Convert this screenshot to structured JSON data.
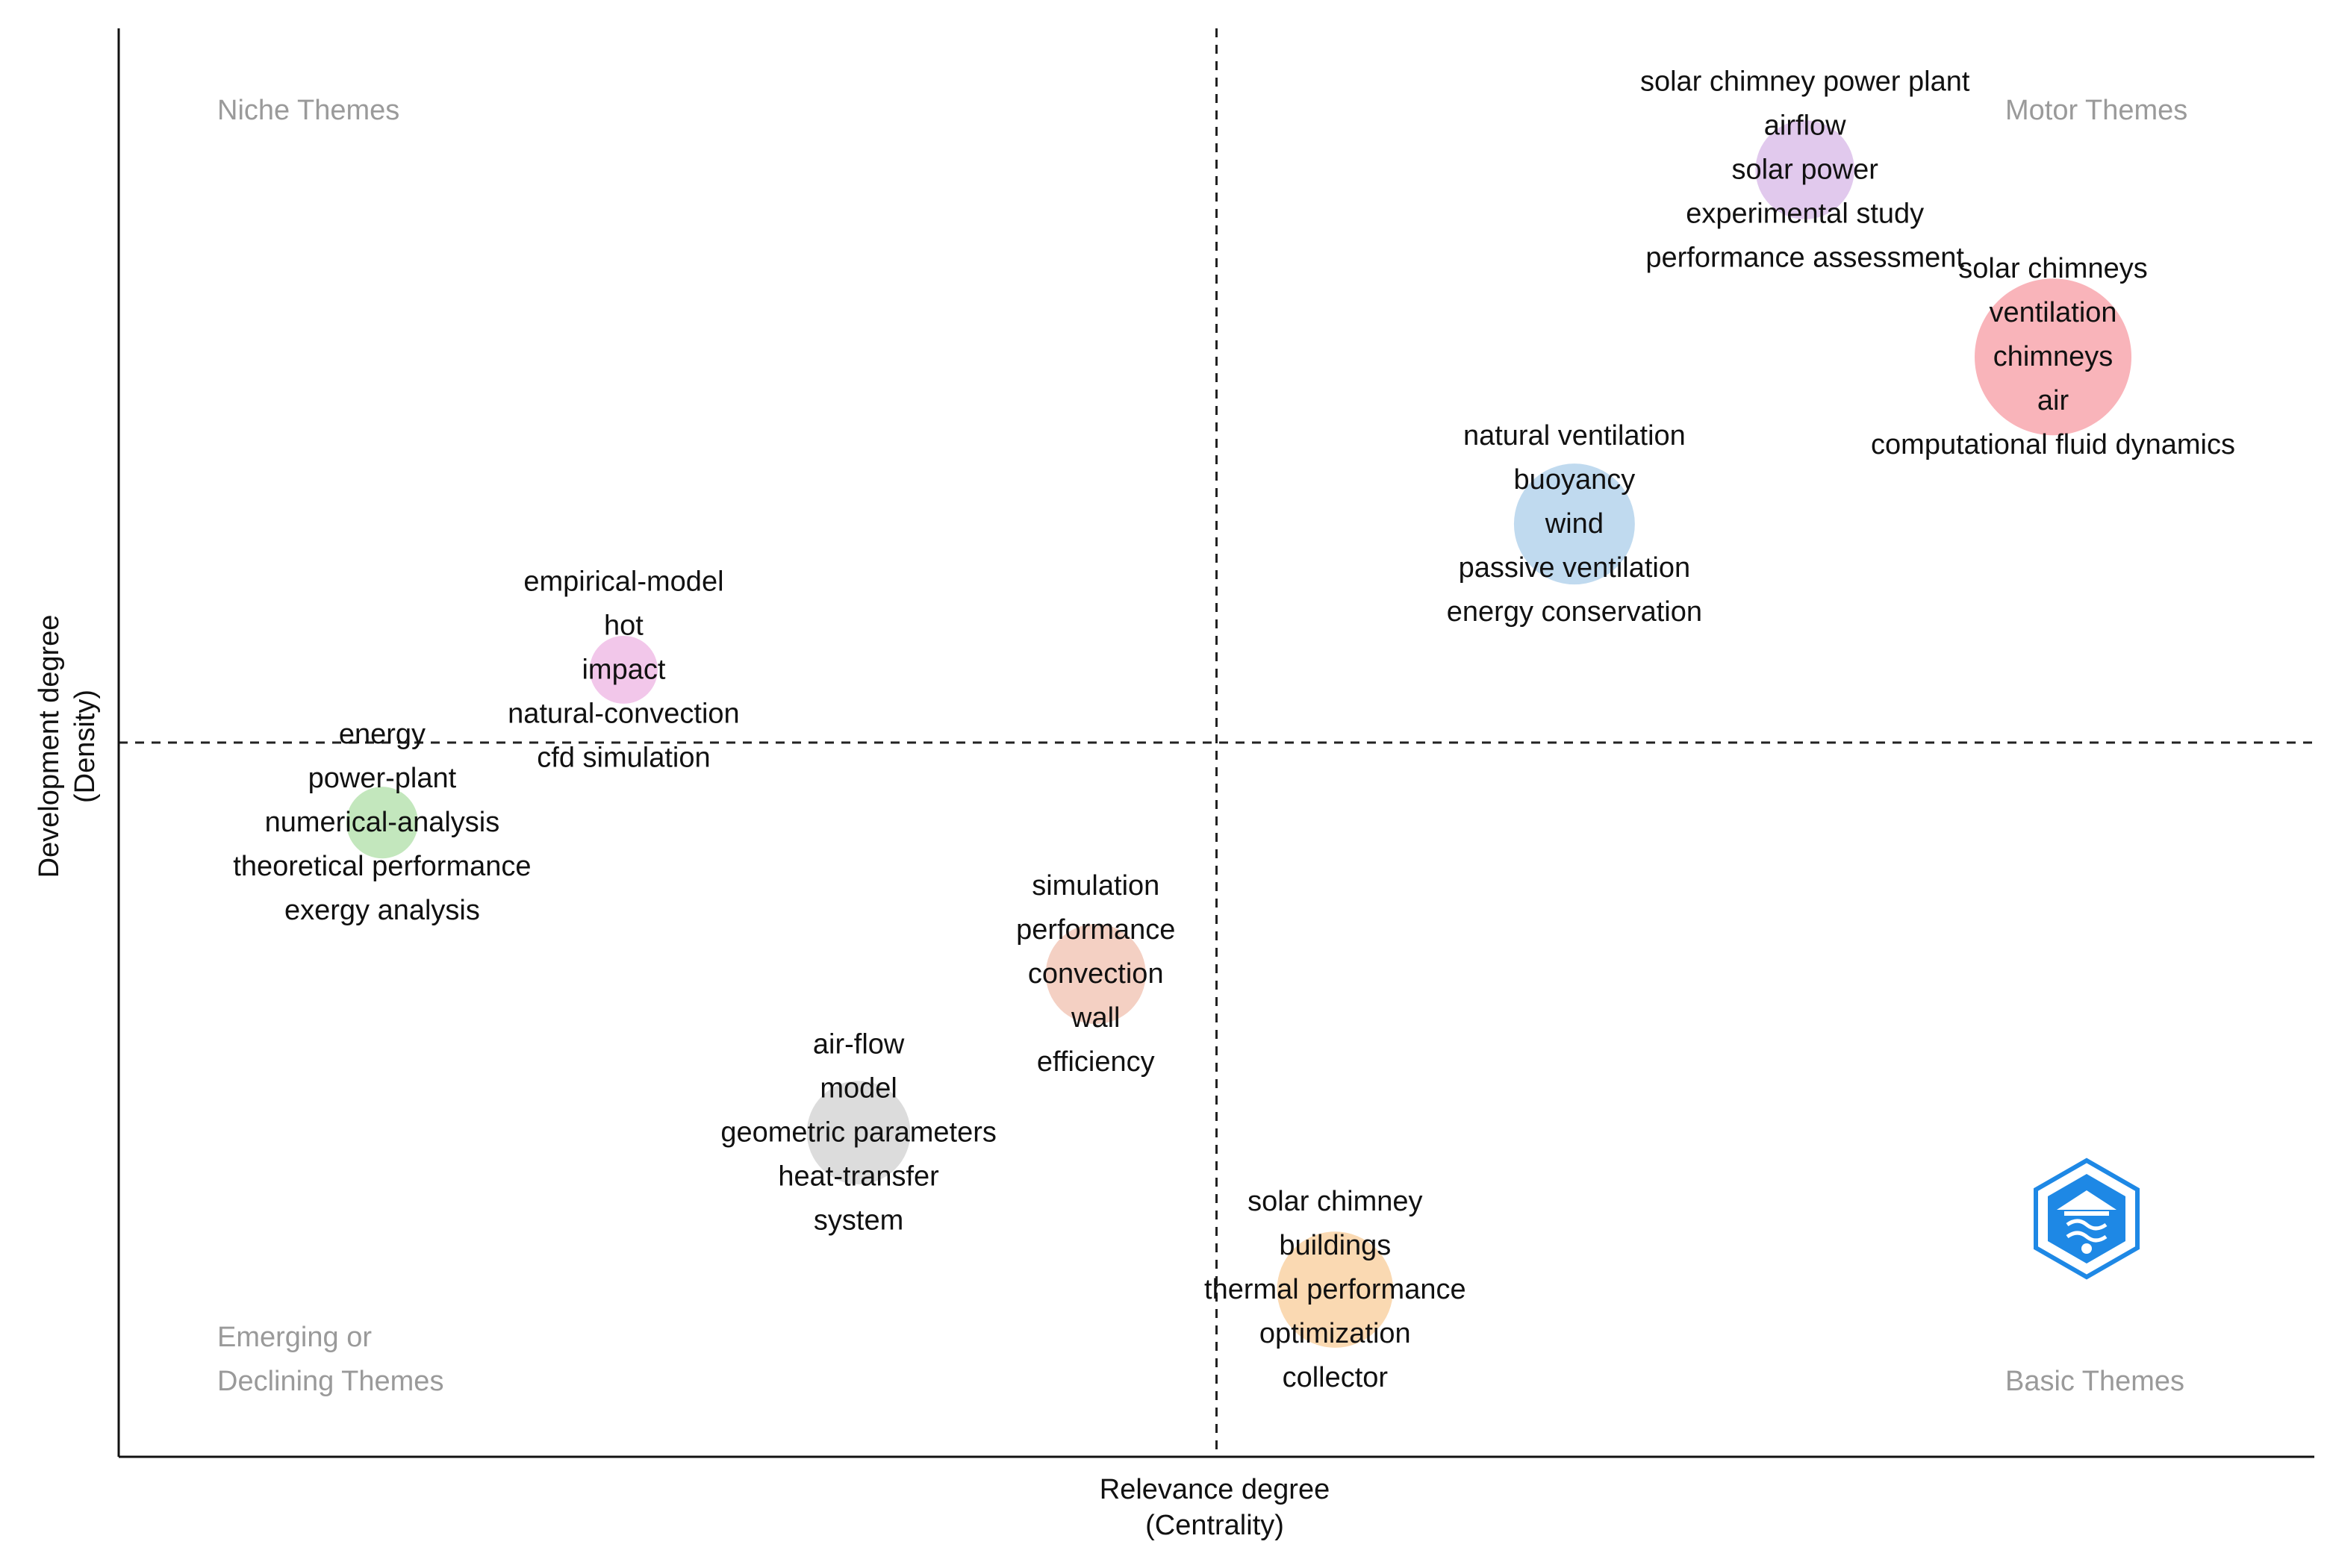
{
  "chart_data": {
    "type": "scatter",
    "title": "",
    "xlabel": "Relevance degree",
    "xlabel_sub": "(Centrality)",
    "ylabel": "Development degree",
    "ylabel_sub": "(Density)",
    "xlim": [
      0,
      100
    ],
    "ylim": [
      0,
      100
    ],
    "x_divider": 50,
    "y_divider": 50,
    "quadrant_labels": [
      {
        "text": "Niche Themes",
        "quadrant": "top-left"
      },
      {
        "text": "Motor Themes",
        "quadrant": "top-right"
      },
      {
        "text": "Emerging or",
        "quadrant": "bottom-left-line1"
      },
      {
        "text": "Declining Themes",
        "quadrant": "bottom-left-line2"
      },
      {
        "text": "Basic Themes",
        "quadrant": "bottom-right"
      }
    ],
    "clusters": [
      {
        "name": "solar chimney power plant",
        "x": 76.8,
        "y": 90.1,
        "size": 0.34,
        "color": "#dcc0ea",
        "keywords": [
          "solar chimney power plant",
          "airflow",
          "solar power",
          "experimental study",
          "performance assessment"
        ]
      },
      {
        "name": "solar chimneys",
        "x": 88.1,
        "y": 77.0,
        "size": 1.0,
        "color": "#f8a7ae",
        "keywords": [
          "solar chimneys",
          "ventilation",
          "chimneys",
          "air",
          "computational fluid dynamics"
        ]
      },
      {
        "name": "natural ventilation",
        "x": 66.3,
        "y": 65.3,
        "size": 0.55,
        "color": "#b5d3ec",
        "keywords": [
          "natural ventilation",
          "buoyancy",
          "wind",
          "passive ventilation",
          "energy conservation"
        ]
      },
      {
        "name": "empirical-model",
        "x": 23.0,
        "y": 55.1,
        "size": 0.13,
        "color": "#f0bde6",
        "keywords": [
          "empirical-model",
          "hot",
          "impact",
          "natural-convection",
          "cfd simulation"
        ]
      },
      {
        "name": "energy",
        "x": 12.0,
        "y": 44.4,
        "size": 0.15,
        "color": "#b9e3b2",
        "keywords": [
          "energy",
          "power-plant",
          "numerical-analysis",
          "theoretical performance",
          "exergy analysis"
        ]
      },
      {
        "name": "simulation",
        "x": 44.5,
        "y": 33.8,
        "size": 0.35,
        "color": "#f2c8b8",
        "keywords": [
          "simulation",
          "performance",
          "convection",
          "wall",
          "efficiency"
        ]
      },
      {
        "name": "air-flow",
        "x": 33.7,
        "y": 22.7,
        "size": 0.38,
        "color": "#d6d6d6",
        "keywords": [
          "air-flow",
          "model",
          "geometric parameters",
          "heat-transfer",
          "system"
        ]
      },
      {
        "name": "solar chimney",
        "x": 55.4,
        "y": 11.7,
        "size": 0.5,
        "color": "#f9d2a4",
        "keywords": [
          "solar chimney",
          "buildings",
          "thermal performance",
          "optimization",
          "collector"
        ]
      }
    ]
  }
}
